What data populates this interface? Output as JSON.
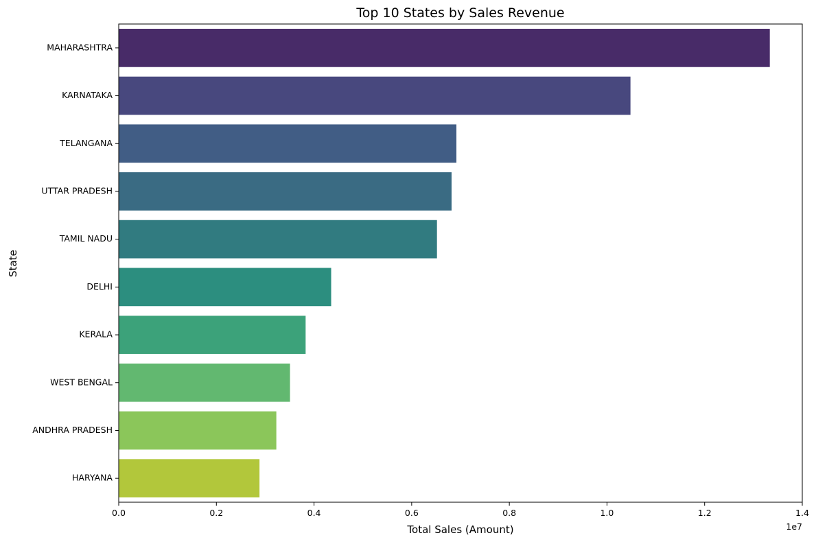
{
  "chart_data": {
    "type": "bar",
    "orientation": "horizontal",
    "title": "Top 10 States by Sales Revenue",
    "xlabel": "Total Sales (Amount)",
    "ylabel": "State",
    "x_offset_label": "1e7",
    "categories": [
      "MAHARASHTRA",
      "KARNATAKA",
      "TELANGANA",
      "UTTAR PRADESH",
      "TAMIL NADU",
      "DELHI",
      "KERALA",
      "WEST BENGAL",
      "ANDHRA PRADESH",
      "HARYANA"
    ],
    "values": [
      13335000,
      10481000,
      6916000,
      6817000,
      6518000,
      4351000,
      3828000,
      3508000,
      3228000,
      2883000
    ],
    "colors": [
      "#482b68",
      "#48487e",
      "#415d85",
      "#3a6b83",
      "#317b80",
      "#2c8e7f",
      "#3ca27a",
      "#62b870",
      "#8bc65a",
      "#b2c73b"
    ],
    "xlim": [
      0,
      14000000
    ],
    "xticks": [
      0,
      2000000,
      4000000,
      6000000,
      8000000,
      10000000,
      12000000,
      14000000
    ],
    "xtick_labels": [
      "0.0",
      "0.2",
      "0.4",
      "0.6",
      "0.8",
      "1.0",
      "1.2",
      "1.4"
    ],
    "grid": false,
    "legend": "none"
  }
}
